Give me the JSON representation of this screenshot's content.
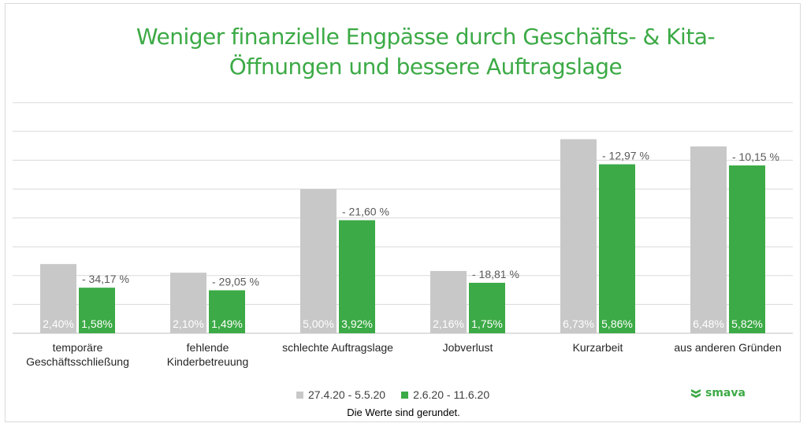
{
  "chart_data": {
    "type": "bar",
    "title": "Weniger finanzielle Engpässe durch Geschäfts- & Kita-Öffnungen und bessere Auftragslage",
    "title_lines": [
      "Weniger finanzielle Engpässe durch Geschäfts- & Kita-",
      "Öffnungen und bessere Auftragslage"
    ],
    "categories": [
      [
        "temporäre",
        "Geschäftsschließung"
      ],
      [
        "fehlende",
        "Kinderbetreuung"
      ],
      [
        "schlechte Auftragslage"
      ],
      [
        "Jobverlust"
      ],
      [
        "Kurzarbeit"
      ],
      [
        "aus anderen Gründen"
      ]
    ],
    "series": [
      {
        "name": "27.4.20 - 5.5.20",
        "color": "#c8c8c8",
        "values": [
          2.4,
          2.1,
          5.0,
          2.16,
          6.73,
          6.48
        ],
        "labels": [
          "2,40%",
          "2,10%",
          "5,00%",
          "2,16%",
          "6,73%",
          "6,48%"
        ]
      },
      {
        "name": "2.6.20 - 11.6.20",
        "color": "#3caa46",
        "values": [
          1.58,
          1.49,
          3.92,
          1.75,
          5.86,
          5.82
        ],
        "labels": [
          "1,58%",
          "1,49%",
          "3,92%",
          "1,75%",
          "5,86%",
          "5,82%"
        ]
      }
    ],
    "change_labels": [
      "- 34,17 %",
      "- 29,05 %",
      "- 21,60 %",
      "- 18,81 %",
      "- 12,97 %",
      "- 10,15 %"
    ],
    "ylim": [
      0,
      8
    ],
    "grid": true,
    "xlabel": "",
    "ylabel": "",
    "legend_position": "bottom-center"
  },
  "footnote": "Die Werte sind gerundet.",
  "logo_text": "smava",
  "colors": {
    "accent": "#3caa46",
    "grey_series": "#c8c8c8",
    "grid": "#d9d9d9"
  }
}
